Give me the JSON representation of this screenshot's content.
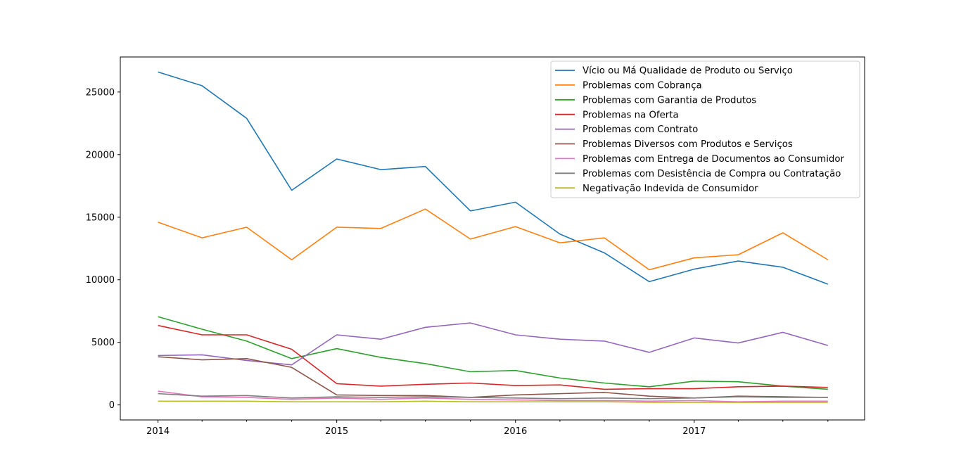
{
  "chart_data": {
    "type": "line",
    "title": "",
    "xlabel": "",
    "ylabel": "",
    "x_tick_labels": [
      "2014",
      "2015",
      "2016",
      "2017"
    ],
    "x": [
      "2014-01",
      "2014-04",
      "2014-07",
      "2014-10",
      "2015-01",
      "2015-04",
      "2015-07",
      "2015-10",
      "2016-01",
      "2016-04",
      "2016-07",
      "2016-10",
      "2017-01",
      "2017-04",
      "2017-07",
      "2017-10"
    ],
    "xlim": [
      "2013-10-16",
      "2017-12-15"
    ],
    "ylim": [
      -1200,
      27800
    ],
    "yticks": [
      0,
      5000,
      10000,
      15000,
      20000,
      25000
    ],
    "grid": false,
    "legend_position": "top-right",
    "series": [
      {
        "name": "Vício ou Má Qualidade de Produto ou Serviço",
        "color": "#1f77b4",
        "values": [
          26600,
          25500,
          22900,
          17150,
          19650,
          18800,
          19050,
          15500,
          16200,
          13650,
          12150,
          9850,
          10850,
          11500,
          11000,
          9650
        ]
      },
      {
        "name": "Problemas com Cobrança",
        "color": "#ff7f0e",
        "values": [
          14600,
          13350,
          14200,
          11600,
          14200,
          14100,
          15650,
          13250,
          14250,
          12950,
          13350,
          10800,
          11750,
          12000,
          13750,
          11600
        ]
      },
      {
        "name": "Problemas com Garantia de Produtos",
        "color": "#2ca02c",
        "values": [
          7050,
          6050,
          5100,
          3700,
          4500,
          3800,
          3300,
          2650,
          2750,
          2150,
          1750,
          1450,
          1900,
          1850,
          1500,
          1250
        ]
      },
      {
        "name": "Problemas na Oferta",
        "color": "#d62728",
        "values": [
          6350,
          5600,
          5600,
          4450,
          1700,
          1500,
          1650,
          1750,
          1550,
          1600,
          1250,
          1300,
          1300,
          1450,
          1500,
          1400
        ]
      },
      {
        "name": "Problemas com Contrato",
        "color": "#9467bd",
        "values": [
          3950,
          4000,
          3550,
          3200,
          5600,
          5250,
          6200,
          6550,
          5600,
          5250,
          5100,
          4200,
          5350,
          4950,
          5800,
          4750
        ]
      },
      {
        "name": "Problemas Diversos com Produtos e Serviços",
        "color": "#8c564b",
        "values": [
          3850,
          3600,
          3700,
          3000,
          800,
          750,
          750,
          600,
          800,
          900,
          1000,
          700,
          550,
          700,
          650,
          600
        ]
      },
      {
        "name": "Problemas com Entrega de Documentos ao Consumidor",
        "color": "#e377c2",
        "values": [
          1100,
          650,
          600,
          450,
          550,
          450,
          550,
          450,
          400,
          350,
          350,
          300,
          350,
          250,
          300,
          300
        ]
      },
      {
        "name": "Problemas com Desistência de Compra ou Contratação",
        "color": "#7f7f7f",
        "values": [
          900,
          700,
          750,
          550,
          650,
          600,
          650,
          600,
          550,
          500,
          550,
          500,
          550,
          650,
          600,
          600
        ]
      },
      {
        "name": "Negativação Indevida de Consumidor",
        "color": "#bcbd22",
        "values": [
          300,
          300,
          300,
          250,
          250,
          250,
          300,
          250,
          250,
          250,
          250,
          200,
          200,
          200,
          200,
          200
        ]
      }
    ]
  }
}
